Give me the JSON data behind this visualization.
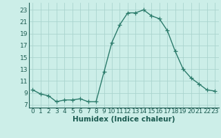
{
  "x": [
    0,
    1,
    2,
    3,
    4,
    5,
    6,
    7,
    8,
    9,
    10,
    11,
    12,
    13,
    14,
    15,
    16,
    17,
    18,
    19,
    20,
    21,
    22,
    23
  ],
  "y": [
    9.5,
    8.8,
    8.5,
    7.5,
    7.8,
    7.8,
    8.0,
    7.5,
    7.5,
    12.5,
    17.5,
    20.5,
    22.5,
    22.5,
    23.0,
    22.0,
    21.5,
    19.5,
    16.0,
    13.0,
    11.5,
    10.5,
    9.5,
    9.3
  ],
  "line_color": "#2a7a6a",
  "marker": "+",
  "marker_size": 4,
  "marker_color": "#2a7a6a",
  "bg_color": "#cceee8",
  "grid_color": "#aad4ce",
  "xlabel": "Humidex (Indice chaleur)",
  "xlabel_fontsize": 7.5,
  "xlabel_color": "#1a5a50",
  "tick_color": "#1a5a50",
  "xlim": [
    -0.5,
    23.5
  ],
  "ylim": [
    6.5,
    24.2
  ],
  "yticks": [
    7,
    9,
    11,
    13,
    15,
    17,
    19,
    21,
    23
  ],
  "xticks": [
    0,
    1,
    2,
    3,
    4,
    5,
    6,
    7,
    8,
    9,
    10,
    11,
    12,
    13,
    14,
    15,
    16,
    17,
    18,
    19,
    20,
    21,
    22,
    23
  ],
  "tick_fontsize": 6.5,
  "line_width": 1.0
}
